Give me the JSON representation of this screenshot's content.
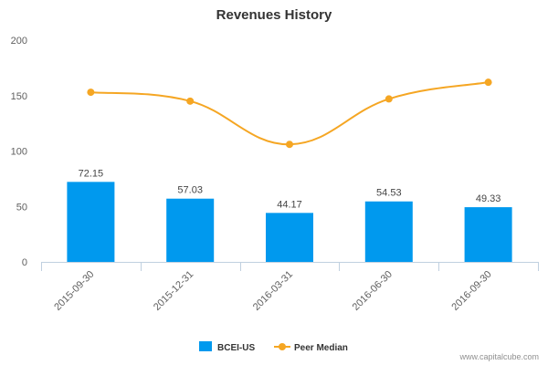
{
  "chart_data": {
    "type": "bar",
    "title": "Revenues History",
    "xlabel": "",
    "ylabel": "",
    "ylim": [
      0,
      200
    ],
    "yticks": [
      0,
      50,
      100,
      150,
      200
    ],
    "grid": false,
    "legend_position": "bottom",
    "categories": [
      "2015-09-30",
      "2015-12-31",
      "2016-03-31",
      "2016-06-30",
      "2016-09-30"
    ],
    "series": [
      {
        "name": "BCEI-US",
        "type": "bar",
        "color": "#0099ee",
        "values": [
          72.15,
          57.03,
          44.17,
          54.53,
          49.33
        ],
        "labels": [
          "72.15",
          "57.03",
          "44.17",
          "54.53",
          "49.33"
        ]
      },
      {
        "name": "Peer Median",
        "type": "line",
        "color": "#f5a623",
        "values": [
          153,
          145,
          106,
          147,
          162
        ]
      }
    ]
  },
  "credit": "www.capitalcube.com"
}
